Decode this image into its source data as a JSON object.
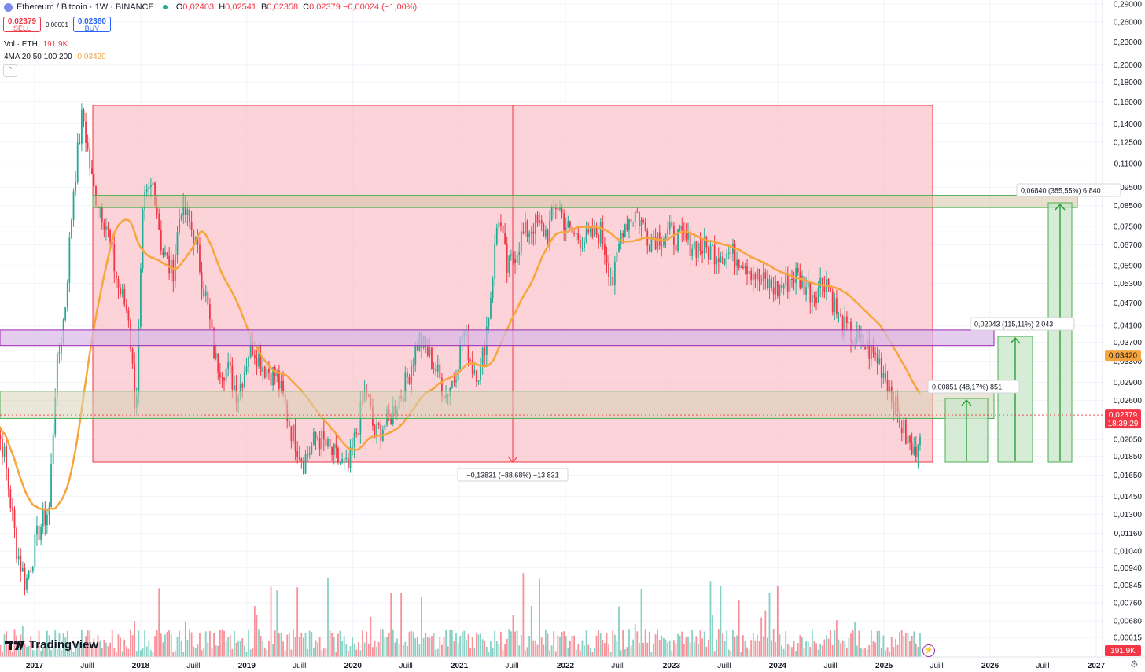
{
  "header": {
    "title": "Ethereum / Bitcoin · 1W · BINANCE",
    "ohlc": [
      {
        "k": "O",
        "v": "0,02403"
      },
      {
        "k": "H",
        "v": "0,02541"
      },
      {
        "k": "B",
        "v": "0,02358"
      },
      {
        "k": "C",
        "v": "0,02379 −0,00024 (−1,00%)"
      }
    ]
  },
  "trade": {
    "sell_price": "0,02379",
    "sell_label": "SELL",
    "spread": "0,00001",
    "buy_price": "0,02380",
    "buy_label": "BUY"
  },
  "indicators": {
    "vol_label": "Vol · ETH",
    "vol_value": "191,9K",
    "ma_label": "4MA 20 50 100 200",
    "ma_value": "0,03420"
  },
  "brand": "TradingView",
  "chart_data": {
    "type": "candlestick",
    "symbol": "ETH/BTC",
    "interval": "1W",
    "scale": "log",
    "y_ticks": [
      "0,29000",
      "0,26000",
      "0,23000",
      "0,20000",
      "0,18000",
      "0,16000",
      "0,14000",
      "0,12500",
      "0,11000",
      "0,09500",
      "0,08500",
      "0,07500",
      "0,06700",
      "0,05900",
      "0,05300",
      "0,04700",
      "0,04100",
      "0,03700",
      "0,03300",
      "0,02900",
      "0,02600",
      "0,02050",
      "0,01850",
      "0,01650",
      "0,01450",
      "0,01300",
      "0,01160",
      "0,01040",
      "0,00940",
      "0,00845",
      "0,00760",
      "0,00680",
      "0,00615"
    ],
    "x_ticks": [
      "2017",
      "Juill",
      "2018",
      "Juill",
      "2019",
      "Juill",
      "2020",
      "Juill",
      "2021",
      "Juill",
      "2022",
      "Juill",
      "2023",
      "Juill",
      "2024",
      "Juill",
      "2025",
      "Juill",
      "2026",
      "Juill",
      "2027"
    ],
    "price_path": [
      [
        "2016-08-01",
        0.0245
      ],
      [
        "2016-09-15",
        0.0195
      ],
      [
        "2016-11-01",
        0.0105
      ],
      [
        "2016-12-01",
        0.0085
      ],
      [
        "2017-01-15",
        0.0118
      ],
      [
        "2017-02-20",
        0.0135
      ],
      [
        "2017-03-15",
        0.03
      ],
      [
        "2017-04-15",
        0.045
      ],
      [
        "2017-05-15",
        0.095
      ],
      [
        "2017-06-15",
        0.15
      ],
      [
        "2017-07-20",
        0.095
      ],
      [
        "2017-09-01",
        0.078
      ],
      [
        "2017-10-15",
        0.052
      ],
      [
        "2017-11-20",
        0.044
      ],
      [
        "2017-12-15",
        0.024
      ],
      [
        "2018-01-10",
        0.085
      ],
      [
        "2018-02-15",
        0.098
      ],
      [
        "2018-03-15",
        0.065
      ],
      [
        "2018-04-20",
        0.056
      ],
      [
        "2018-05-20",
        0.086
      ],
      [
        "2018-07-01",
        0.072
      ],
      [
        "2018-08-15",
        0.048
      ],
      [
        "2018-09-15",
        0.033
      ],
      [
        "2018-11-01",
        0.031
      ],
      [
        "2018-12-01",
        0.027
      ],
      [
        "2019-01-15",
        0.037
      ],
      [
        "2019-03-01",
        0.032
      ],
      [
        "2019-04-15",
        0.03
      ],
      [
        "2019-06-01",
        0.022
      ],
      [
        "2019-07-15",
        0.018
      ],
      [
        "2019-09-01",
        0.021
      ],
      [
        "2019-10-15",
        0.019
      ],
      [
        "2019-12-15",
        0.017
      ],
      [
        "2020-02-15",
        0.028
      ],
      [
        "2020-03-15",
        0.021
      ],
      [
        "2020-05-01",
        0.023
      ],
      [
        "2020-07-01",
        0.029
      ],
      [
        "2020-08-15",
        0.038
      ],
      [
        "2020-10-01",
        0.033
      ],
      [
        "2020-11-15",
        0.027
      ],
      [
        "2020-12-15",
        0.03
      ],
      [
        "2021-01-15",
        0.04
      ],
      [
        "2021-02-15",
        0.032
      ],
      [
        "2021-03-15",
        0.031
      ],
      [
        "2021-04-15",
        0.046
      ],
      [
        "2021-05-15",
        0.082
      ],
      [
        "2021-06-15",
        0.057
      ],
      [
        "2021-08-01",
        0.07
      ],
      [
        "2021-09-15",
        0.076
      ],
      [
        "2021-11-01",
        0.072
      ],
      [
        "2021-12-01",
        0.087
      ],
      [
        "2022-01-15",
        0.072
      ],
      [
        "2022-03-15",
        0.069
      ],
      [
        "2022-05-01",
        0.073
      ],
      [
        "2022-06-15",
        0.053
      ],
      [
        "2022-07-15",
        0.075
      ],
      [
        "2022-09-01",
        0.082
      ],
      [
        "2022-10-15",
        0.07
      ],
      [
        "2022-12-15",
        0.072
      ],
      [
        "2023-03-01",
        0.068
      ],
      [
        "2023-05-01",
        0.065
      ],
      [
        "2023-07-01",
        0.064
      ],
      [
        "2023-09-01",
        0.062
      ],
      [
        "2023-11-01",
        0.054
      ],
      [
        "2024-01-01",
        0.051
      ],
      [
        "2024-03-01",
        0.056
      ],
      [
        "2024-05-01",
        0.05
      ],
      [
        "2024-06-15",
        0.055
      ],
      [
        "2024-08-01",
        0.042
      ],
      [
        "2024-09-15",
        0.038
      ],
      [
        "2024-11-01",
        0.036
      ],
      [
        "2024-12-15",
        0.033
      ],
      [
        "2025-01-15",
        0.029
      ],
      [
        "2025-02-15",
        0.024
      ],
      [
        "2025-03-15",
        0.021
      ],
      [
        "2025-04-15",
        0.0185
      ],
      [
        "2025-05-10",
        0.0238
      ]
    ],
    "ma": {
      "label": "4MA 20 50 100 200",
      "value": "0,03420"
    },
    "current_price": {
      "value": "0,02379",
      "countdown": "18:39:29"
    },
    "volume_label": "191,9K",
    "annotations": {
      "range_measure": "−0,13831 (−88,68%) −13 831",
      "targets": [
        "0,00851 (48,17%) 851",
        "0,02043 (115,11%) 2 043",
        "0,06840 (385,55%) 6 840"
      ]
    },
    "zones": [
      {
        "name": "resistance-zone-top",
        "low": 0.084,
        "high": 0.0905
      },
      {
        "name": "purple-zone",
        "low": 0.0363,
        "high": 0.0399
      },
      {
        "name": "support-zone",
        "low": 0.0233,
        "high": 0.0275
      }
    ]
  },
  "colors": {
    "up": "#22ab94",
    "down": "#f23645",
    "ma": "#f7a53d",
    "range_fill": "#f9c4cb",
    "zone_green": "#c8e6c9",
    "zone_purple": "#d9b8e8"
  }
}
